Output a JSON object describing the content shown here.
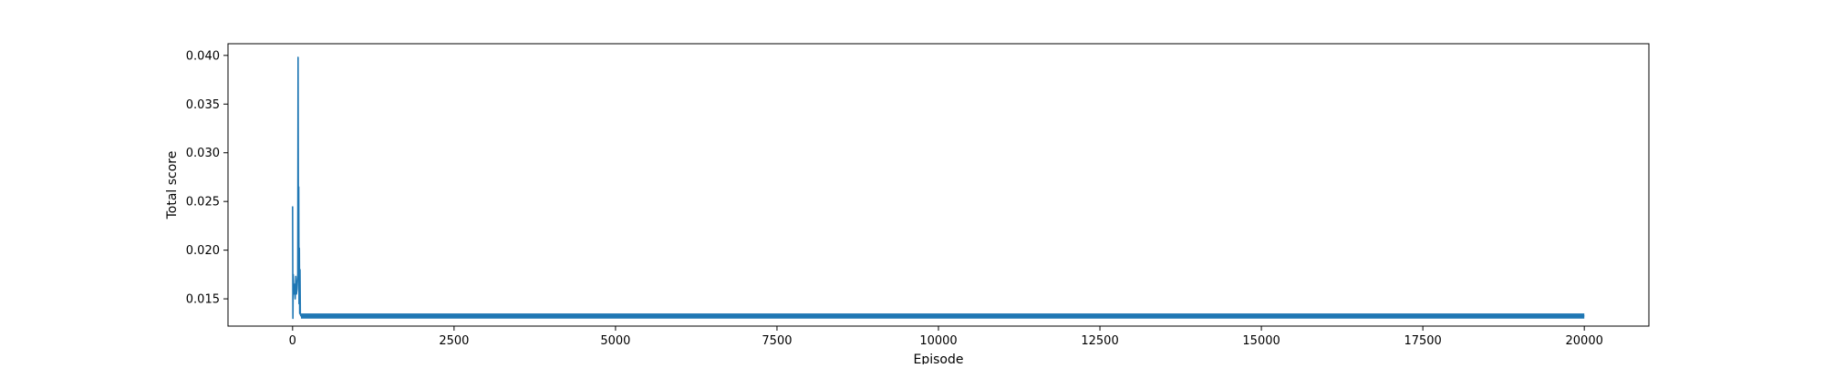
{
  "chart_data": {
    "type": "line",
    "title": "",
    "xlabel": "Episode",
    "ylabel": "Total score",
    "xlim": [
      -1000,
      21000
    ],
    "ylim": [
      0.0122,
      0.0412
    ],
    "x_ticks": [
      0,
      2500,
      5000,
      7500,
      10000,
      12500,
      15000,
      17500,
      20000
    ],
    "y_ticks": [
      0.015,
      0.02,
      0.025,
      0.03,
      0.035,
      0.04
    ],
    "x_tick_labels": [
      "0",
      "2500",
      "5000",
      "7500",
      "10000",
      "12500",
      "15000",
      "17500",
      "20000"
    ],
    "y_tick_labels": [
      "0.015",
      "0.020",
      "0.025",
      "0.030",
      "0.035",
      "0.040"
    ],
    "grid": false,
    "series": [
      {
        "color": "#1f77b4",
        "x": [
          0,
          5,
          10,
          20,
          30,
          40,
          50,
          60,
          70,
          80,
          85,
          90,
          95,
          100,
          105,
          110,
          115,
          120,
          130,
          150,
          200,
          300,
          500,
          1000,
          2500,
          5000,
          7500,
          10000,
          12500,
          15000,
          17500,
          20000
        ],
        "y": [
          0.0245,
          0.013,
          0.0175,
          0.0155,
          0.0165,
          0.015,
          0.0173,
          0.0155,
          0.016,
          0.0175,
          0.0398,
          0.022,
          0.0265,
          0.0145,
          0.0202,
          0.0135,
          0.018,
          0.0134,
          0.01325,
          0.01325,
          0.01325,
          0.01325,
          0.01325,
          0.01325,
          0.01325,
          0.01325,
          0.01325,
          0.01325,
          0.01325,
          0.01325,
          0.01325,
          0.01325
        ]
      }
    ]
  }
}
